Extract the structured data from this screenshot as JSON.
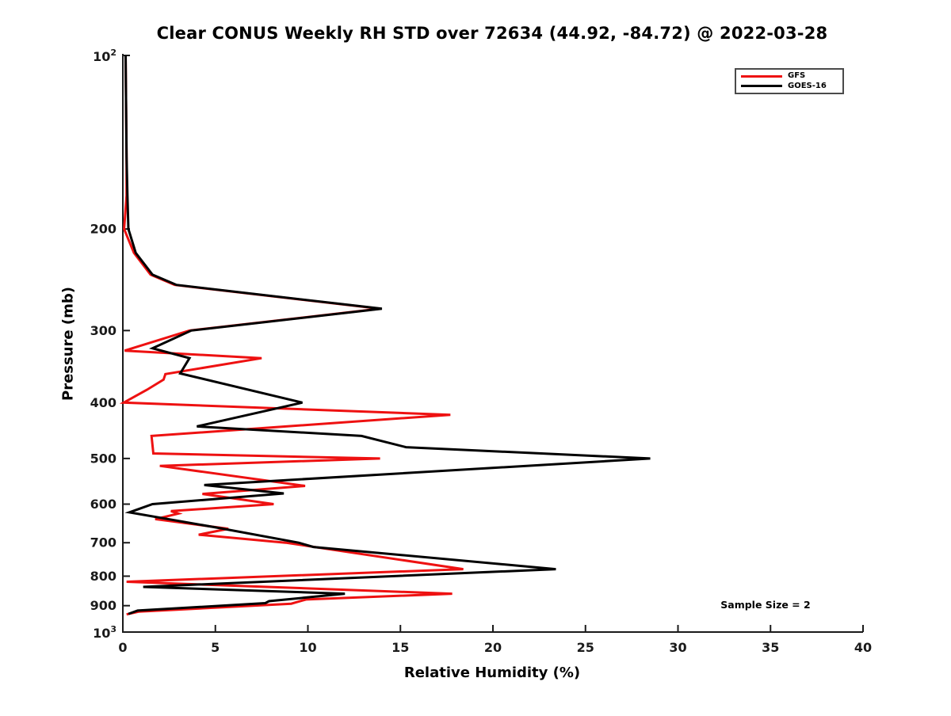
{
  "figure": {
    "title": "Clear CONUS Weekly RH STD over 72634 (44.92, -84.72) @ 2022-03-28",
    "xlabel": "Relative Humidity (%)",
    "ylabel": "Pressure (mb)",
    "annotation": "Sample Size = 2"
  },
  "chart_data": {
    "type": "line",
    "title": "Clear CONUS Weekly RH STD over 72634 (44.92, -84.72) @ 2022-03-28",
    "xlabel": "Relative Humidity (%)",
    "ylabel": "Pressure (mb)",
    "x_axis": {
      "min": 0,
      "max": 40,
      "ticks": [
        0,
        5,
        10,
        15,
        20,
        25,
        30,
        35,
        40
      ]
    },
    "y_axis": {
      "scale": "log",
      "inverted": "pressure increases downward",
      "min": 100,
      "max": 1000,
      "ticks": [
        100,
        200,
        300,
        400,
        500,
        600,
        700,
        800,
        900,
        1000
      ],
      "tick_labels": [
        "10^2",
        "200",
        "300",
        "400",
        "500",
        "600",
        "700",
        "800",
        "900",
        "10^3"
      ]
    },
    "legend": {
      "position": "top-right",
      "entries": [
        {
          "name": "GFS",
          "color": "#ee1111"
        },
        {
          "name": "GOES-16",
          "color": "#000000"
        }
      ]
    },
    "annotation": "Sample Size = 2",
    "series": [
      {
        "name": "GFS",
        "color": "#ee1111",
        "points_format": "[pressure_mb, rh_percent]",
        "points": [
          [
            100,
            0.15
          ],
          [
            150,
            0.2
          ],
          [
            175,
            0.2
          ],
          [
            200,
            0.07
          ],
          [
            220,
            0.6
          ],
          [
            240,
            1.5
          ],
          [
            250,
            2.8
          ],
          [
            275,
            13.9
          ],
          [
            300,
            3.6
          ],
          [
            325,
            0.1
          ],
          [
            335,
            7.5
          ],
          [
            357,
            2.3
          ],
          [
            365,
            2.2
          ],
          [
            380,
            1.3
          ],
          [
            400,
            0.05
          ],
          [
            420,
            17.7
          ],
          [
            457,
            1.55
          ],
          [
            490,
            1.65
          ],
          [
            500,
            13.9
          ],
          [
            515,
            2.0
          ],
          [
            558,
            9.85
          ],
          [
            576,
            4.3
          ],
          [
            600,
            8.15
          ],
          [
            617,
            2.6
          ],
          [
            623,
            3.0
          ],
          [
            637,
            1.75
          ],
          [
            662,
            5.7
          ],
          [
            678,
            4.1
          ],
          [
            700,
            8.8
          ],
          [
            778,
            18.4
          ],
          [
            818,
            0.2
          ],
          [
            858,
            17.8
          ],
          [
            878,
            9.9
          ],
          [
            893,
            9.1
          ],
          [
            922,
            0.85
          ],
          [
            932,
            0.2
          ]
        ]
      },
      {
        "name": "GOES-16",
        "color": "#000000",
        "points_format": "[pressure_mb, rh_percent]",
        "points": [
          [
            100,
            0.15
          ],
          [
            150,
            0.2
          ],
          [
            175,
            0.25
          ],
          [
            200,
            0.3
          ],
          [
            220,
            0.7
          ],
          [
            240,
            1.6
          ],
          [
            250,
            2.9
          ],
          [
            275,
            14.0
          ],
          [
            300,
            3.7
          ],
          [
            322,
            1.6
          ],
          [
            335,
            3.6
          ],
          [
            356,
            3.1
          ],
          [
            400,
            9.7
          ],
          [
            440,
            4.0
          ],
          [
            457,
            12.9
          ],
          [
            478,
            15.3
          ],
          [
            500,
            28.5
          ],
          [
            556,
            4.4
          ],
          [
            575,
            8.7
          ],
          [
            600,
            1.6
          ],
          [
            620,
            0.35
          ],
          [
            660,
            5.2
          ],
          [
            700,
            9.5
          ],
          [
            712,
            10.3
          ],
          [
            778,
            23.4
          ],
          [
            835,
            1.1
          ],
          [
            858,
            12.0
          ],
          [
            884,
            7.9
          ],
          [
            891,
            7.7
          ],
          [
            918,
            0.8
          ],
          [
            930,
            0.3
          ]
        ]
      }
    ]
  }
}
